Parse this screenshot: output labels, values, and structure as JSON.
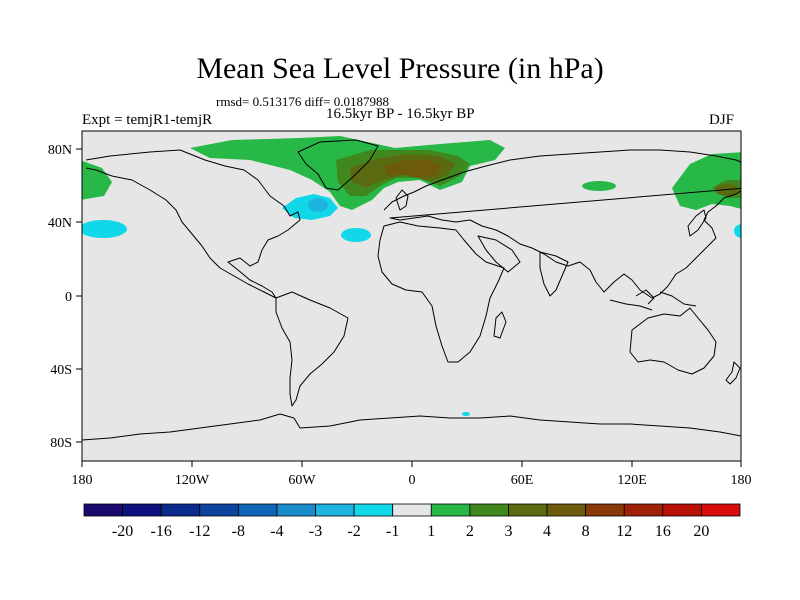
{
  "title": "Mean Sea Level Pressure (in hPa)",
  "stats": "rmsd= 0.513176 diff= 0.0187988",
  "experiment": "Expt = temjR1-temjR",
  "period": "16.5kyr BP - 16.5kyr BP",
  "season": "DJF",
  "lat_labels": [
    "80N",
    "40N",
    "0",
    "40S",
    "80S"
  ],
  "lon_labels": [
    "180",
    "120W",
    "60W",
    "0",
    "60E",
    "120E",
    "180"
  ],
  "colorbar": {
    "labels": [
      "-20",
      "-16",
      "-12",
      "-8",
      "-4",
      "-3",
      "-2",
      "-1",
      "1",
      "2",
      "3",
      "4",
      "8",
      "12",
      "16",
      "20"
    ],
    "colors": [
      "#1b0a6e",
      "#0d1280",
      "#0a2a8c",
      "#0c44a0",
      "#1064b8",
      "#1a8ccc",
      "#1fb4e0",
      "#10d8e8",
      "#e6e6e6",
      "#28b848",
      "#40881e",
      "#5a6a10",
      "#6e5a0c",
      "#8a3a0a",
      "#9e2208",
      "#b81208",
      "#d80c0c"
    ]
  },
  "colors": {
    "ocean_background": "#e6e6e6",
    "coastline": "#000000"
  }
}
